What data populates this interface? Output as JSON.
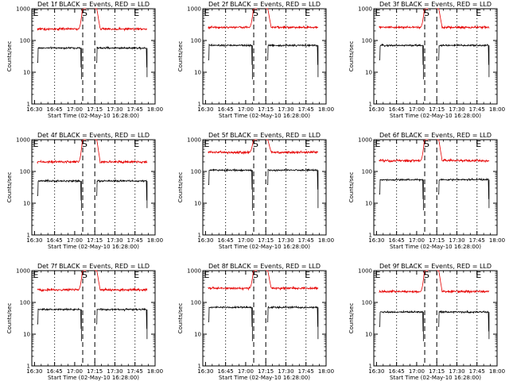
{
  "colors": {
    "events": "#000000",
    "lld": "#e60000",
    "axes": "#000000",
    "background": "#ffffff"
  },
  "markers": {
    "start": "S",
    "end": "E"
  },
  "chart_data": [
    {
      "type": "line",
      "title": "Det 1f BLACK = Events, RED = LLD",
      "xlabel": "Start Time (02-May-10 16:28:00)",
      "ylabel": "Counts/sec",
      "xticks": [
        "16:30",
        "16:45",
        "17:00",
        "17:15",
        "17:30",
        "17:45",
        "18:00"
      ],
      "xlim_min": [
        0,
        92
      ],
      "yscale": "log",
      "ylim": [
        1,
        1000
      ],
      "yticks": [
        "1",
        "10",
        "100",
        "1000"
      ],
      "grid": false,
      "data_span_min": [
        4,
        86
      ],
      "dotted_lines_min": [
        17,
        62,
        77
      ],
      "dashed_lines_min": [
        38,
        47
      ],
      "series": [
        {
          "name": "Events",
          "color": "#000000",
          "baseline": 58,
          "break": [
            38,
            47
          ]
        },
        {
          "name": "LLD",
          "color": "#e60000",
          "baseline": 230,
          "peak": 1000,
          "break": [
            38,
            47
          ]
        }
      ]
    },
    {
      "type": "line",
      "title": "Det 2f BLACK = Events, RED = LLD",
      "xlabel": "Start Time (02-May-10 16:28:00)",
      "ylabel": "Counts/sec",
      "xticks": [
        "16:30",
        "16:45",
        "17:00",
        "17:15",
        "17:30",
        "17:45",
        "18:00"
      ],
      "xlim_min": [
        0,
        92
      ],
      "yscale": "log",
      "ylim": [
        1,
        1000
      ],
      "yticks": [
        "1",
        "10",
        "100",
        "1000"
      ],
      "grid": false,
      "data_span_min": [
        4,
        86
      ],
      "dotted_lines_min": [
        17,
        62,
        77
      ],
      "dashed_lines_min": [
        38,
        47
      ],
      "series": [
        {
          "name": "Events",
          "color": "#000000",
          "baseline": 70,
          "break": [
            38,
            47
          ]
        },
        {
          "name": "LLD",
          "color": "#e60000",
          "baseline": 260,
          "peak": 1000,
          "break": [
            38,
            47
          ]
        }
      ]
    },
    {
      "type": "line",
      "title": "Det 3f BLACK = Events, RED = LLD",
      "xlabel": "Start Time (02-May-10 16:28:00)",
      "ylabel": "Counts/sec",
      "xticks": [
        "16:30",
        "16:45",
        "17:00",
        "17:15",
        "17:30",
        "17:45",
        "18:00"
      ],
      "xlim_min": [
        0,
        92
      ],
      "yscale": "log",
      "ylim": [
        1,
        1000
      ],
      "yticks": [
        "1",
        "10",
        "100",
        "1000"
      ],
      "grid": false,
      "data_span_min": [
        4,
        86
      ],
      "dotted_lines_min": [
        17,
        62,
        77
      ],
      "dashed_lines_min": [
        38,
        47
      ],
      "series": [
        {
          "name": "Events",
          "color": "#000000",
          "baseline": 70,
          "break": [
            38,
            47
          ]
        },
        {
          "name": "LLD",
          "color": "#e60000",
          "baseline": 260,
          "peak": 1000,
          "break": [
            38,
            47
          ]
        }
      ]
    },
    {
      "type": "line",
      "title": "Det 4f BLACK = Events, RED = LLD",
      "xlabel": "Start Time (02-May-10 16:28:00)",
      "ylabel": "Counts/sec",
      "xticks": [
        "16:30",
        "16:45",
        "17:00",
        "17:15",
        "17:30",
        "17:45",
        "18:00"
      ],
      "xlim_min": [
        0,
        92
      ],
      "yscale": "log",
      "ylim": [
        1,
        1000
      ],
      "yticks": [
        "1",
        "10",
        "100",
        "1000"
      ],
      "grid": false,
      "data_span_min": [
        4,
        86
      ],
      "dotted_lines_min": [
        17,
        62,
        77
      ],
      "dashed_lines_min": [
        38,
        47
      ],
      "series": [
        {
          "name": "Events",
          "color": "#000000",
          "baseline": 50,
          "break": [
            38,
            47
          ]
        },
        {
          "name": "LLD",
          "color": "#e60000",
          "baseline": 200,
          "peak": 1000,
          "break": [
            38,
            47
          ]
        }
      ]
    },
    {
      "type": "line",
      "title": "Det 5f BLACK = Events, RED = LLD",
      "xlabel": "Start Time (02-May-10 16:28:00)",
      "ylabel": "Counts/sec",
      "xticks": [
        "16:30",
        "16:45",
        "17:00",
        "17:15",
        "17:30",
        "17:45",
        "18:00"
      ],
      "xlim_min": [
        0,
        92
      ],
      "yscale": "log",
      "ylim": [
        1,
        1000
      ],
      "yticks": [
        "1",
        "10",
        "100",
        "1000"
      ],
      "grid": false,
      "data_span_min": [
        4,
        86
      ],
      "dotted_lines_min": [
        17,
        62,
        77
      ],
      "dashed_lines_min": [
        38,
        47
      ],
      "series": [
        {
          "name": "Events",
          "color": "#000000",
          "baseline": 110,
          "break": [
            38,
            47
          ]
        },
        {
          "name": "LLD",
          "color": "#e60000",
          "baseline": 400,
          "peak": 1000,
          "break": [
            38,
            47
          ]
        }
      ]
    },
    {
      "type": "line",
      "title": "Det 6f BLACK = Events, RED = LLD",
      "xlabel": "Start Time (02-May-10 16:28:00)",
      "ylabel": "Counts/sec",
      "xticks": [
        "16:30",
        "16:45",
        "17:00",
        "17:15",
        "17:30",
        "17:45",
        "18:00"
      ],
      "xlim_min": [
        0,
        92
      ],
      "yscale": "log",
      "ylim": [
        1,
        1000
      ],
      "yticks": [
        "1",
        "10",
        "100",
        "1000"
      ],
      "grid": false,
      "data_span_min": [
        4,
        86
      ],
      "dotted_lines_min": [
        17,
        62,
        77
      ],
      "dashed_lines_min": [
        38,
        47
      ],
      "series": [
        {
          "name": "Events",
          "color": "#000000",
          "baseline": 55,
          "break": [
            38,
            47
          ]
        },
        {
          "name": "LLD",
          "color": "#e60000",
          "baseline": 220,
          "peak": 1000,
          "break": [
            38,
            47
          ]
        }
      ]
    },
    {
      "type": "line",
      "title": "Det 7f BLACK = Events, RED = LLD",
      "xlabel": "Start Time (02-May-10 16:28:00)",
      "ylabel": "Counts/sec",
      "xticks": [
        "16:30",
        "16:45",
        "17:00",
        "17:15",
        "17:30",
        "17:45",
        "18:00"
      ],
      "xlim_min": [
        0,
        92
      ],
      "yscale": "log",
      "ylim": [
        1,
        1000
      ],
      "yticks": [
        "1",
        "10",
        "100",
        "1000"
      ],
      "grid": false,
      "data_span_min": [
        4,
        86
      ],
      "dotted_lines_min": [
        17,
        62,
        77
      ],
      "dashed_lines_min": [
        38,
        47
      ],
      "series": [
        {
          "name": "Events",
          "color": "#000000",
          "baseline": 60,
          "break": [
            38,
            47
          ]
        },
        {
          "name": "LLD",
          "color": "#e60000",
          "baseline": 250,
          "peak": 1000,
          "break": [
            38,
            47
          ]
        }
      ]
    },
    {
      "type": "line",
      "title": "Det 8f BLACK = Events, RED = LLD",
      "xlabel": "Start Time (02-May-10 16:28:00)",
      "ylabel": "Counts/sec",
      "xticks": [
        "16:30",
        "16:45",
        "17:00",
        "17:15",
        "17:30",
        "17:45",
        "18:00"
      ],
      "xlim_min": [
        0,
        92
      ],
      "yscale": "log",
      "ylim": [
        1,
        1000
      ],
      "yticks": [
        "1",
        "10",
        "100",
        "1000"
      ],
      "grid": false,
      "data_span_min": [
        4,
        86
      ],
      "dotted_lines_min": [
        17,
        62,
        77
      ],
      "dashed_lines_min": [
        38,
        47
      ],
      "series": [
        {
          "name": "Events",
          "color": "#000000",
          "baseline": 70,
          "break": [
            38,
            47
          ]
        },
        {
          "name": "LLD",
          "color": "#e60000",
          "baseline": 280,
          "peak": 1000,
          "break": [
            38,
            47
          ]
        }
      ]
    },
    {
      "type": "line",
      "title": "Det 9f BLACK = Events, RED = LLD",
      "xlabel": "Start Time (02-May-10 16:28:00)",
      "ylabel": "Counts/sec",
      "xticks": [
        "16:30",
        "16:45",
        "17:00",
        "17:15",
        "17:30",
        "17:45",
        "18:00"
      ],
      "xlim_min": [
        0,
        92
      ],
      "yscale": "log",
      "ylim": [
        1,
        1000
      ],
      "yticks": [
        "1",
        "10",
        "100",
        "1000"
      ],
      "grid": false,
      "data_span_min": [
        4,
        86
      ],
      "dotted_lines_min": [
        17,
        62,
        77
      ],
      "dashed_lines_min": [
        38,
        47
      ],
      "series": [
        {
          "name": "Events",
          "color": "#000000",
          "baseline": 50,
          "break": [
            38,
            47
          ]
        },
        {
          "name": "LLD",
          "color": "#e60000",
          "baseline": 220,
          "peak": 1000,
          "break": [
            38,
            47
          ]
        }
      ]
    }
  ]
}
